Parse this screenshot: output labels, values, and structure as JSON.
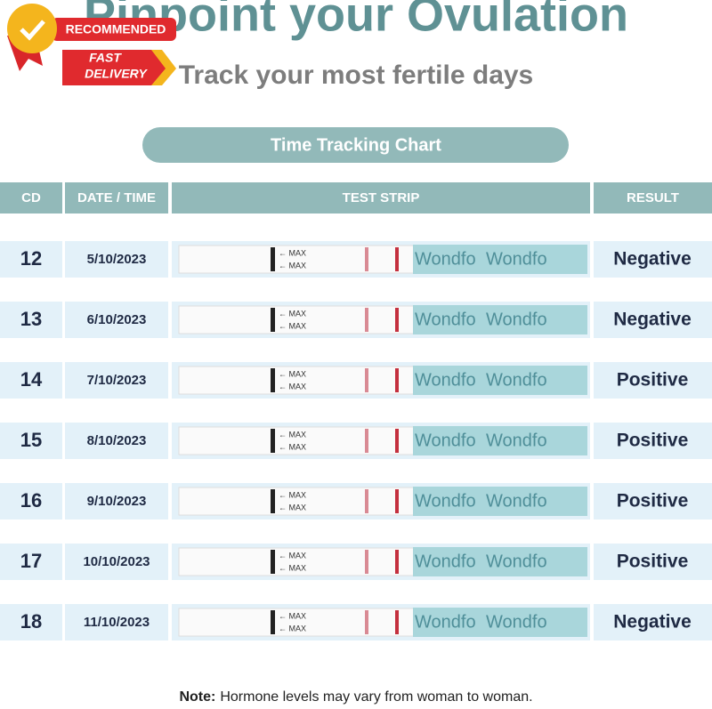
{
  "header": {
    "title": "Pinpoint your Ovulation",
    "subtitle": "Track your most fertile days"
  },
  "badges": {
    "recommended": "RECOMMENDED",
    "fast": "FAST",
    "delivery": "DELIVERY"
  },
  "table": {
    "title": "Time Tracking Chart",
    "columns": [
      "CD",
      "DATE / TIME",
      "TEST STRIP",
      "RESULT"
    ],
    "strip_label": "← MAX",
    "brand": "Wondfo",
    "rows": [
      [
        "12",
        "5/10/2023",
        "Negative"
      ],
      [
        "13",
        "6/10/2023",
        "Negative"
      ],
      [
        "14",
        "7/10/2023",
        "Positive"
      ],
      [
        "15",
        "8/10/2023",
        "Positive"
      ],
      [
        "16",
        "9/10/2023",
        "Positive"
      ],
      [
        "17",
        "10/10/2023",
        "Positive"
      ],
      [
        "18",
        "11/10/2023",
        "Negative"
      ]
    ]
  },
  "note": {
    "label": "Note:",
    "text": "Hormone levels may vary from woman to woman."
  }
}
